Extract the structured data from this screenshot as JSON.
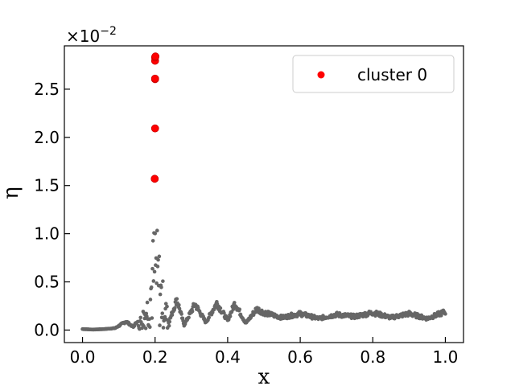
{
  "chart_data": {
    "type": "scatter",
    "xlabel": "x",
    "ylabel": "η",
    "offset_text": "×10",
    "offset_exponent": "−2",
    "xlim": [
      -0.05,
      1.05
    ],
    "ylim": [
      -0.0013,
      0.0295
    ],
    "xticks": [
      0.0,
      0.2,
      0.4,
      0.6,
      0.8,
      1.0
    ],
    "xtick_labels": [
      "0.0",
      "0.2",
      "0.4",
      "0.6",
      "0.8",
      "1.0"
    ],
    "yticks": [
      0.0,
      0.005,
      0.01,
      0.015,
      0.02,
      0.025
    ],
    "ytick_labels": [
      "0.0",
      "0.5",
      "1.0",
      "1.5",
      "2.0",
      "2.5"
    ],
    "legend_position": "top-right",
    "colors": {
      "background_points": "#666666",
      "cluster": "#ff0000",
      "cluster_edge": "#cc0000"
    },
    "series": [
      {
        "name": "cluster 0",
        "x": [
          0.199,
          0.2,
          0.2,
          0.2,
          0.2,
          0.2,
          0.201
        ],
        "y": [
          0.0157,
          0.02093,
          0.02604,
          0.0261,
          0.02795,
          0.0283,
          0.0284
        ]
      }
    ],
    "background_profile": {
      "x": [
        0.0,
        0.03,
        0.06,
        0.09,
        0.12,
        0.14,
        0.16,
        0.18,
        0.2,
        0.22,
        0.24,
        0.26,
        0.28,
        0.31,
        0.34,
        0.37,
        0.4,
        0.42,
        0.45,
        0.48,
        0.5,
        0.55,
        0.6,
        0.65,
        0.7,
        0.75,
        0.8,
        0.85,
        0.9,
        0.95,
        1.0
      ],
      "y": [
        0.0001,
        5e-05,
        0.0001,
        0.0002,
        0.0009,
        0.0003,
        0.0015,
        0.004,
        0.0125,
        0.0055,
        0.001,
        0.0032,
        0.0005,
        0.0027,
        0.0008,
        0.0028,
        0.001,
        0.0028,
        0.0007,
        0.0022,
        0.0018,
        0.0013,
        0.0017,
        0.0012,
        0.0016,
        0.0014,
        0.0018,
        0.0013,
        0.0017,
        0.0012,
        0.0019
      ]
    }
  }
}
